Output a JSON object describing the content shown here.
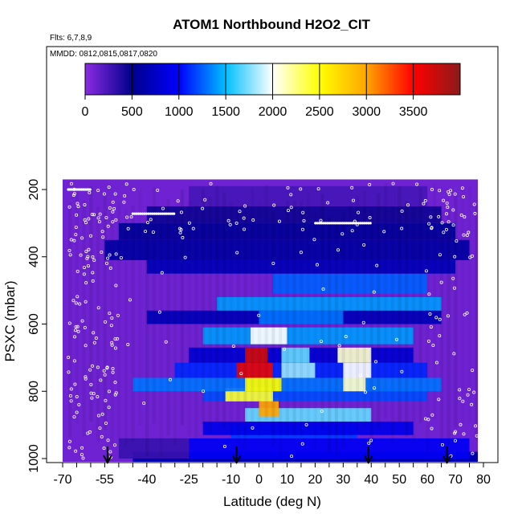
{
  "chart_data": {
    "type": "heatmap",
    "title": "ATOM1 Northbound H2O2_CIT",
    "flights_label": "Flts: 6,7,8,9",
    "dates_label": "MMDD: 0812,0815,0817,0820",
    "xlabel": "Latitude (deg N)",
    "ylabel": "PSXC (mbar)",
    "xlim": [
      -70,
      80
    ],
    "ylim": [
      1010,
      130
    ],
    "x_ticks": [
      -70,
      -55,
      -40,
      -25,
      -10,
      0,
      10,
      20,
      30,
      40,
      50,
      60,
      70,
      80
    ],
    "x_tick_labels": [
      "-70",
      "-55",
      "-40",
      "-25",
      "-10",
      "0",
      "10",
      "20",
      "30",
      "40",
      "50",
      "60",
      "70",
      "80"
    ],
    "x_minor_step": 5,
    "y_ticks": [
      200,
      400,
      600,
      800,
      1000
    ],
    "y_tick_labels": [
      "200",
      "400",
      "600",
      "800",
      "1000"
    ],
    "colorbar": {
      "range": [
        0,
        4000
      ],
      "ticks": [
        0,
        500,
        1000,
        1500,
        2000,
        2500,
        3000,
        3500
      ],
      "tick_labels": [
        "0",
        "500",
        "1000",
        "1500",
        "2000",
        "2500",
        "3000",
        "3500"
      ],
      "color_stops": [
        "#8a2be2",
        "#00008b",
        "#0000ff",
        "#00bfff",
        "#ffffff",
        "#ffff00",
        "#ffa500",
        "#ff0000",
        "#8b1a1a"
      ]
    },
    "background_value": 100,
    "z_units_hint": "pptv",
    "bands": [
      {
        "p": [
          940,
          1000
        ],
        "lat": [
          -25,
          75
        ],
        "value": 950
      },
      {
        "p": [
          940,
          1000
        ],
        "lat": [
          -50,
          -25
        ],
        "value": 300
      },
      {
        "p": [
          900,
          940
        ],
        "lat": [
          -10,
          35
        ],
        "value": 1150
      },
      {
        "p": [
          890,
          930
        ],
        "lat": [
          -20,
          55
        ],
        "value": 900
      },
      {
        "p": [
          850,
          890
        ],
        "lat": [
          -5,
          40
        ],
        "value": 1700
      },
      {
        "p": [
          820,
          875
        ],
        "lat": [
          0,
          7
        ],
        "value": 3000
      },
      {
        "p": [
          790,
          830
        ],
        "lat": [
          -20,
          60
        ],
        "value": 1200
      },
      {
        "p": [
          790,
          830
        ],
        "lat": [
          -12,
          5
        ],
        "value": 2400
      },
      {
        "p": [
          760,
          800
        ],
        "lat": [
          -45,
          65
        ],
        "value": 1300
      },
      {
        "p": [
          760,
          800
        ],
        "lat": [
          -5,
          8
        ],
        "value": 2500
      },
      {
        "p": [
          760,
          800
        ],
        "lat": [
          30,
          38
        ],
        "value": 2100
      },
      {
        "p": [
          715,
          760
        ],
        "lat": [
          -30,
          60
        ],
        "value": 1100
      },
      {
        "p": [
          715,
          760
        ],
        "lat": [
          -8,
          5
        ],
        "value": 3600
      },
      {
        "p": [
          715,
          760
        ],
        "lat": [
          8,
          20
        ],
        "value": 1800
      },
      {
        "p": [
          715,
          760
        ],
        "lat": [
          30,
          40
        ],
        "value": 2000
      },
      {
        "p": [
          670,
          715
        ],
        "lat": [
          -25,
          55
        ],
        "value": 800
      },
      {
        "p": [
          670,
          715
        ],
        "lat": [
          -5,
          3
        ],
        "value": 3700
      },
      {
        "p": [
          670,
          715
        ],
        "lat": [
          8,
          18
        ],
        "value": 1700
      },
      {
        "p": [
          670,
          715
        ],
        "lat": [
          28,
          40
        ],
        "value": 2100
      },
      {
        "p": [
          610,
          660
        ],
        "lat": [
          -20,
          55
        ],
        "value": 1400
      },
      {
        "p": [
          610,
          660
        ],
        "lat": [
          -3,
          10
        ],
        "value": 2000
      },
      {
        "p": [
          560,
          600
        ],
        "lat": [
          -40,
          65
        ],
        "value": 700
      },
      {
        "p": [
          560,
          600
        ],
        "lat": [
          0,
          30
        ],
        "value": 1300
      },
      {
        "p": [
          520,
          560
        ],
        "lat": [
          -15,
          65
        ],
        "value": 1400
      },
      {
        "p": [
          450,
          510
        ],
        "lat": [
          5,
          60
        ],
        "value": 1250
      },
      {
        "p": [
          410,
          450
        ],
        "lat": [
          -40,
          70
        ],
        "value": 700
      },
      {
        "p": [
          350,
          410
        ],
        "lat": [
          -55,
          75
        ],
        "value": 600
      },
      {
        "p": [
          300,
          350
        ],
        "lat": [
          -50,
          70
        ],
        "value": 550
      },
      {
        "p": [
          250,
          300
        ],
        "lat": [
          -40,
          65
        ],
        "value": 450
      },
      {
        "p": [
          190,
          250
        ],
        "lat": [
          -25,
          60
        ],
        "value": 250
      }
    ],
    "profile_markers_lat": [
      -54,
      -8,
      39,
      67
    ]
  }
}
